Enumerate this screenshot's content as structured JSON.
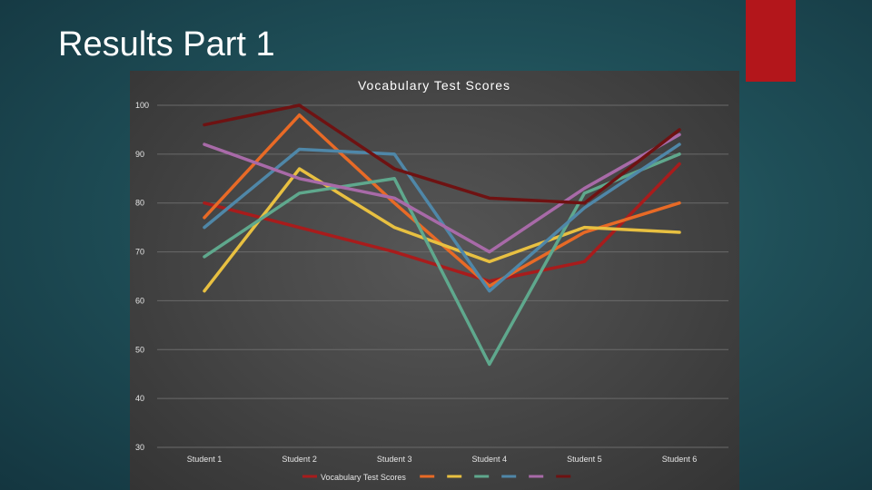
{
  "slide": {
    "title": "Results Part 1",
    "accent_color": "#b3161b"
  },
  "chart_data": {
    "type": "line",
    "title": "Vocabulary Test Scores",
    "xlabel": "",
    "ylabel": "",
    "categories": [
      "Student 1",
      "Student 2",
      "Student 3",
      "Student 4",
      "Student 5",
      "Student 6"
    ],
    "ylim": [
      30,
      100
    ],
    "yticks": [
      100,
      90,
      80,
      70,
      60,
      50,
      40,
      30
    ],
    "grid": true,
    "legend_position": "bottom",
    "series": [
      {
        "name": "Vocabulary Test Scores",
        "color": "#a81c1c",
        "values": [
          80,
          75,
          70,
          64,
          68,
          88
        ]
      },
      {
        "name": "",
        "color": "#e86a26",
        "values": [
          77,
          98,
          80,
          63,
          74,
          80
        ]
      },
      {
        "name": "",
        "color": "#e8c041",
        "values": [
          62,
          87,
          75,
          68,
          75,
          74
        ]
      },
      {
        "name": "",
        "color": "#5fa88d",
        "values": [
          69,
          82,
          85,
          47,
          82,
          90
        ]
      },
      {
        "name": "",
        "color": "#4f87a8",
        "values": [
          75,
          91,
          90,
          62,
          79,
          92
        ]
      },
      {
        "name": "",
        "color": "#a86aa8",
        "values": [
          92,
          85,
          81,
          70,
          83,
          94
        ]
      },
      {
        "name": "",
        "color": "#6e1212",
        "values": [
          96,
          100,
          87,
          81,
          80,
          95
        ]
      }
    ]
  }
}
